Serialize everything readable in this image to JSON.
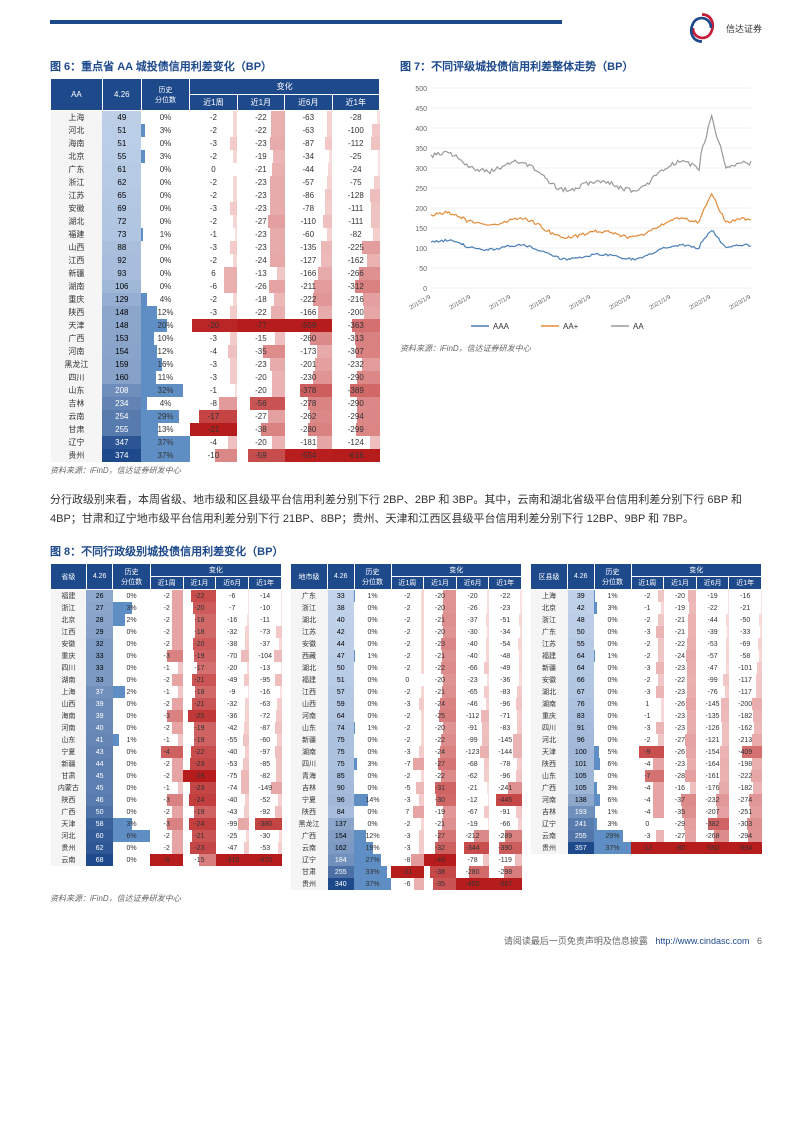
{
  "logo_text": "信达证券",
  "fig6": {
    "title": "图 6：重点省 AA 城投债信用利差变化（BP）",
    "headers": [
      "AA",
      "4.26",
      "历史分位数",
      "近1周",
      "近1月",
      "近6月",
      "近1年"
    ],
    "rows": [
      [
        "上海",
        49,
        "0%",
        -2,
        -22,
        -63,
        -28
      ],
      [
        "河北",
        51,
        "3%",
        -2,
        -22,
        -63,
        -100
      ],
      [
        "海南",
        51,
        "0%",
        -3,
        -23,
        -87,
        -112
      ],
      [
        "北京",
        55,
        "3%",
        -2,
        -19,
        -34,
        -25
      ],
      [
        "广东",
        61,
        "0%",
        0,
        -21,
        -44,
        -24
      ],
      [
        "浙江",
        62,
        "0%",
        -2,
        -23,
        -57,
        -75
      ],
      [
        "江苏",
        65,
        "0%",
        -2,
        -23,
        -86,
        -128
      ],
      [
        "安徽",
        69,
        "0%",
        -3,
        -23,
        -78,
        -111
      ],
      [
        "湖北",
        72,
        "0%",
        -2,
        -27,
        -110,
        -111
      ],
      [
        "福建",
        73,
        "1%",
        -1,
        -23,
        -60,
        -82
      ],
      [
        "山西",
        88,
        "0%",
        -3,
        -23,
        -135,
        -225
      ],
      [
        "江西",
        92,
        "0%",
        -2,
        -24,
        -127,
        -162
      ],
      [
        "新疆",
        93,
        "0%",
        6,
        -13,
        -166,
        -266
      ],
      [
        "湖南",
        106,
        "0%",
        -6,
        -26,
        -211,
        -312
      ],
      [
        "重庆",
        129,
        "4%",
        -2,
        -18,
        -222,
        -216
      ],
      [
        "陕西",
        148,
        "12%",
        -3,
        -22,
        -166,
        -200
      ],
      [
        "天津",
        148,
        "20%",
        -20,
        -77,
        -559,
        -363
      ],
      [
        "广西",
        153,
        "10%",
        -3,
        -15,
        -260,
        -313
      ],
      [
        "河南",
        154,
        "12%",
        -4,
        -35,
        -173,
        -307
      ],
      [
        "黑龙江",
        159,
        "16%",
        -3,
        -23,
        -201,
        -232
      ],
      [
        "四川",
        160,
        "11%",
        -3,
        -20,
        -230,
        -290
      ],
      [
        "山东",
        208,
        "32%",
        -1,
        -20,
        -378,
        -389
      ],
      [
        "吉林",
        234,
        "4%",
        -8,
        -56,
        -278,
        -290
      ],
      [
        "云南",
        254,
        "29%",
        -17,
        -27,
        -262,
        -294
      ],
      [
        "甘肃",
        255,
        "13%",
        -21,
        -38,
        -280,
        -299
      ],
      [
        "辽宁",
        347,
        "37%",
        -4,
        -20,
        -181,
        -124
      ],
      [
        "贵州",
        374,
        "37%",
        -10,
        -59,
        -554,
        -616
      ]
    ],
    "source": "资料来源：iFinD，信达证券研发中心"
  },
  "fig7": {
    "title": "图 7：不同评级城投债信用利差整体走势（BP）",
    "ylim": [
      0,
      500
    ],
    "ytick": 50,
    "xlabels": [
      "2015/1/9",
      "2016/1/9",
      "2017/1/9",
      "2018/1/9",
      "2019/1/9",
      "2020/1/9",
      "2021/1/9",
      "2022/1/9",
      "2023/1/9"
    ],
    "series": [
      {
        "name": "AAA",
        "color": "#4a7fb5"
      },
      {
        "name": "AA+",
        "color": "#e38b3a"
      },
      {
        "name": "AA",
        "color": "#999999"
      }
    ],
    "source": "资料来源：iFinD，信达证券研发中心"
  },
  "body_text": "分行政级别来看，本周省级、地市级和区县级平台信用利差分别下行 2BP、2BP 和 3BP。其中，云南和湖北省级平台信用利差分别下行 6BP 和 4BP；甘肃和辽宁地市级平台信用利差分别下行 21BP、8BP；贵州、天津和江西区县级平台信用利差分别下行 12BP、9BP 和 7BP。",
  "fig8": {
    "title": "图 8：不同行政级别城投债信用利差变化（BP）",
    "headers_prov": [
      "省级",
      "4.26",
      "历史分位数",
      "近1周",
      "近1月",
      "近6月",
      "近1年"
    ],
    "headers_city": [
      "地市级",
      "4.26",
      "历史分位数",
      "近1周",
      "近1月",
      "近6月",
      "近1年"
    ],
    "headers_dist": [
      "区县级",
      "4.26",
      "历史分位数",
      "近1周",
      "近1月",
      "近6月",
      "近1年"
    ],
    "prov": [
      [
        "福建",
        26,
        "0%",
        -2,
        -22,
        -6,
        -14
      ],
      [
        "浙江",
        27,
        "3%",
        -2,
        -20,
        -7,
        -10
      ],
      [
        "北京",
        28,
        "2%",
        -2,
        -18,
        -16,
        -11
      ],
      [
        "江西",
        29,
        "0%",
        -2,
        -18,
        -32,
        -73
      ],
      [
        "安徽",
        32,
        "0%",
        -2,
        -20,
        -38,
        -37
      ],
      [
        "重庆",
        33,
        "0%",
        -3,
        -19,
        -70,
        -104
      ],
      [
        "四川",
        33,
        "0%",
        -1,
        -17,
        -20,
        -13
      ],
      [
        "湖南",
        33,
        "0%",
        -2,
        -21,
        -49,
        -95
      ],
      [
        "上海",
        37,
        "2%",
        -1,
        -18,
        -9,
        -16
      ],
      [
        "山西",
        39,
        "0%",
        -2,
        -21,
        -32,
        -63
      ],
      [
        "海南",
        39,
        "0%",
        -3,
        -25,
        -36,
        -72
      ],
      [
        "河南",
        40,
        "0%",
        -2,
        -19,
        -42,
        -87
      ],
      [
        "山东",
        41,
        "1%",
        -1,
        -19,
        -55,
        -60
      ],
      [
        "宁夏",
        43,
        "0%",
        -4,
        -22,
        -40,
        -97
      ],
      [
        "新疆",
        44,
        "0%",
        -2,
        -23,
        -53,
        -85
      ],
      [
        "甘肃",
        45,
        "0%",
        -2,
        -29,
        -75,
        -82
      ],
      [
        "内蒙古",
        45,
        "0%",
        -1,
        -23,
        -74,
        -149
      ],
      [
        "陕西",
        46,
        "0%",
        -3,
        -24,
        -40,
        -52
      ],
      [
        "广西",
        50,
        "0%",
        -2,
        -19,
        -43,
        -92
      ],
      [
        "天津",
        58,
        "3%",
        -3,
        -24,
        -99,
        -380
      ],
      [
        "河北",
        60,
        "6%",
        -2,
        -21,
        -25,
        -30
      ],
      [
        "贵州",
        62,
        "0%",
        -2,
        -23,
        -47,
        -53
      ],
      [
        "云南",
        68,
        "0%",
        -6,
        -15,
        -316,
        -470
      ]
    ],
    "city": [
      [
        "广东",
        33,
        "1%",
        -2,
        -20,
        -20,
        -22
      ],
      [
        "浙江",
        38,
        "0%",
        -2,
        -20,
        -26,
        -23
      ],
      [
        "湖北",
        40,
        "0%",
        -2,
        -21,
        -37,
        -51
      ],
      [
        "江苏",
        42,
        "0%",
        -2,
        -20,
        -30,
        -34
      ],
      [
        "安徽",
        44,
        "0%",
        -2,
        -23,
        -40,
        -54
      ],
      [
        "西藏",
        47,
        "1%",
        -2,
        -21,
        -40,
        -48
      ],
      [
        "湖北",
        50,
        "0%",
        -2,
        -22,
        -66,
        -49
      ],
      [
        "福建",
        51,
        "0%",
        0,
        -20,
        -23,
        -36
      ],
      [
        "江西",
        57,
        "0%",
        -2,
        -21,
        -65,
        -83
      ],
      [
        "山西",
        59,
        "0%",
        -3,
        -24,
        -46,
        -96
      ],
      [
        "河南",
        64,
        "0%",
        -2,
        -25,
        -112,
        -71
      ],
      [
        "山东",
        74,
        "1%",
        -2,
        -20,
        -91,
        -83
      ],
      [
        "新疆",
        75,
        "0%",
        -2,
        -22,
        -99,
        -145
      ],
      [
        "湖南",
        75,
        "0%",
        -3,
        -24,
        -123,
        -144
      ],
      [
        "四川",
        75,
        "3%",
        -7,
        -27,
        -68,
        -78
      ],
      [
        "青海",
        85,
        "0%",
        -2,
        -22,
        -62,
        -96
      ],
      [
        "吉林",
        90,
        "0%",
        -5,
        -31,
        -21,
        -241
      ],
      [
        "宁夏",
        96,
        "14%",
        -3,
        -30,
        -12,
        -445
      ],
      [
        "陕西",
        84,
        "0%",
        7,
        -19,
        -67,
        -91
      ],
      [
        "黑龙江",
        137,
        "0%",
        -2,
        -21,
        -19,
        -66
      ],
      [
        "广西",
        154,
        "12%",
        -3,
        -27,
        -212,
        -289
      ],
      [
        "云南",
        162,
        "19%",
        -3,
        -32,
        -344,
        -390
      ],
      [
        "辽宁",
        184,
        "27%",
        -8,
        -48,
        -78,
        -119
      ],
      [
        "甘肃",
        255,
        "33%",
        -21,
        -38,
        -280,
        -298
      ],
      [
        "贵州",
        340,
        "37%",
        -6,
        -35,
        -455,
        -567
      ]
    ],
    "dist": [
      [
        "上海",
        39,
        "1%",
        -2,
        -20,
        -19,
        -16
      ],
      [
        "北京",
        42,
        "3%",
        -1,
        -19,
        -22,
        -21
      ],
      [
        "浙江",
        48,
        "0%",
        -2,
        -21,
        -44,
        -50
      ],
      [
        "广东",
        50,
        "0%",
        -3,
        -21,
        -39,
        -33
      ],
      [
        "江苏",
        55,
        "0%",
        -2,
        -22,
        -53,
        -69
      ],
      [
        "福建",
        64,
        "1%",
        -2,
        -24,
        -57,
        -58
      ],
      [
        "新疆",
        64,
        "0%",
        -3,
        -23,
        -47,
        -101
      ],
      [
        "安徽",
        66,
        "0%",
        -2,
        -22,
        -99,
        -117
      ],
      [
        "湖北",
        67,
        "0%",
        -3,
        -23,
        -76,
        -117
      ],
      [
        "湖南",
        76,
        "0%",
        1,
        -26,
        -145,
        -200
      ],
      [
        "重庆",
        83,
        "0%",
        -1,
        -23,
        -135,
        -182
      ],
      [
        "四川",
        91,
        "0%",
        -3,
        -23,
        -126,
        -162
      ],
      [
        "河北",
        96,
        "0%",
        -2,
        -27,
        -121,
        -213
      ],
      [
        "天津",
        100,
        "5%",
        -9,
        -26,
        -154,
        -409
      ],
      [
        "陕西",
        101,
        "6%",
        -4,
        -23,
        -164,
        -198
      ],
      [
        "山东",
        105,
        "0%",
        -7,
        -28,
        -161,
        -222
      ],
      [
        "广西",
        105,
        "3%",
        -4,
        -16,
        -176,
        -182
      ],
      [
        "河南",
        138,
        "6%",
        -4,
        -37,
        -232,
        -274
      ],
      [
        "吉林",
        193,
        "1%",
        -4,
        -35,
        -207,
        -251
      ],
      [
        "辽宁",
        241,
        "3%",
        0,
        -29,
        -382,
        -303
      ],
      [
        "云南",
        255,
        "29%",
        -3,
        -27,
        -268,
        -294
      ],
      [
        "贵州",
        357,
        "37%",
        -12,
        -80,
        -592,
        -694
      ]
    ],
    "source": "资料来源：iFinD，信达证券研发中心"
  },
  "footer": {
    "text": "请阅读最后一页免责声明及信息披露",
    "url": "http://www.cindasc.com",
    "page": "6"
  },
  "colors": {
    "header": "#1e4a8c",
    "blue_scale": [
      "#d4e3f5",
      "#5e8ec4",
      "#1e4a8c"
    ],
    "red_scale": [
      "#fde8e8",
      "#f5a0a0",
      "#e04545",
      "#b71c1c"
    ]
  }
}
